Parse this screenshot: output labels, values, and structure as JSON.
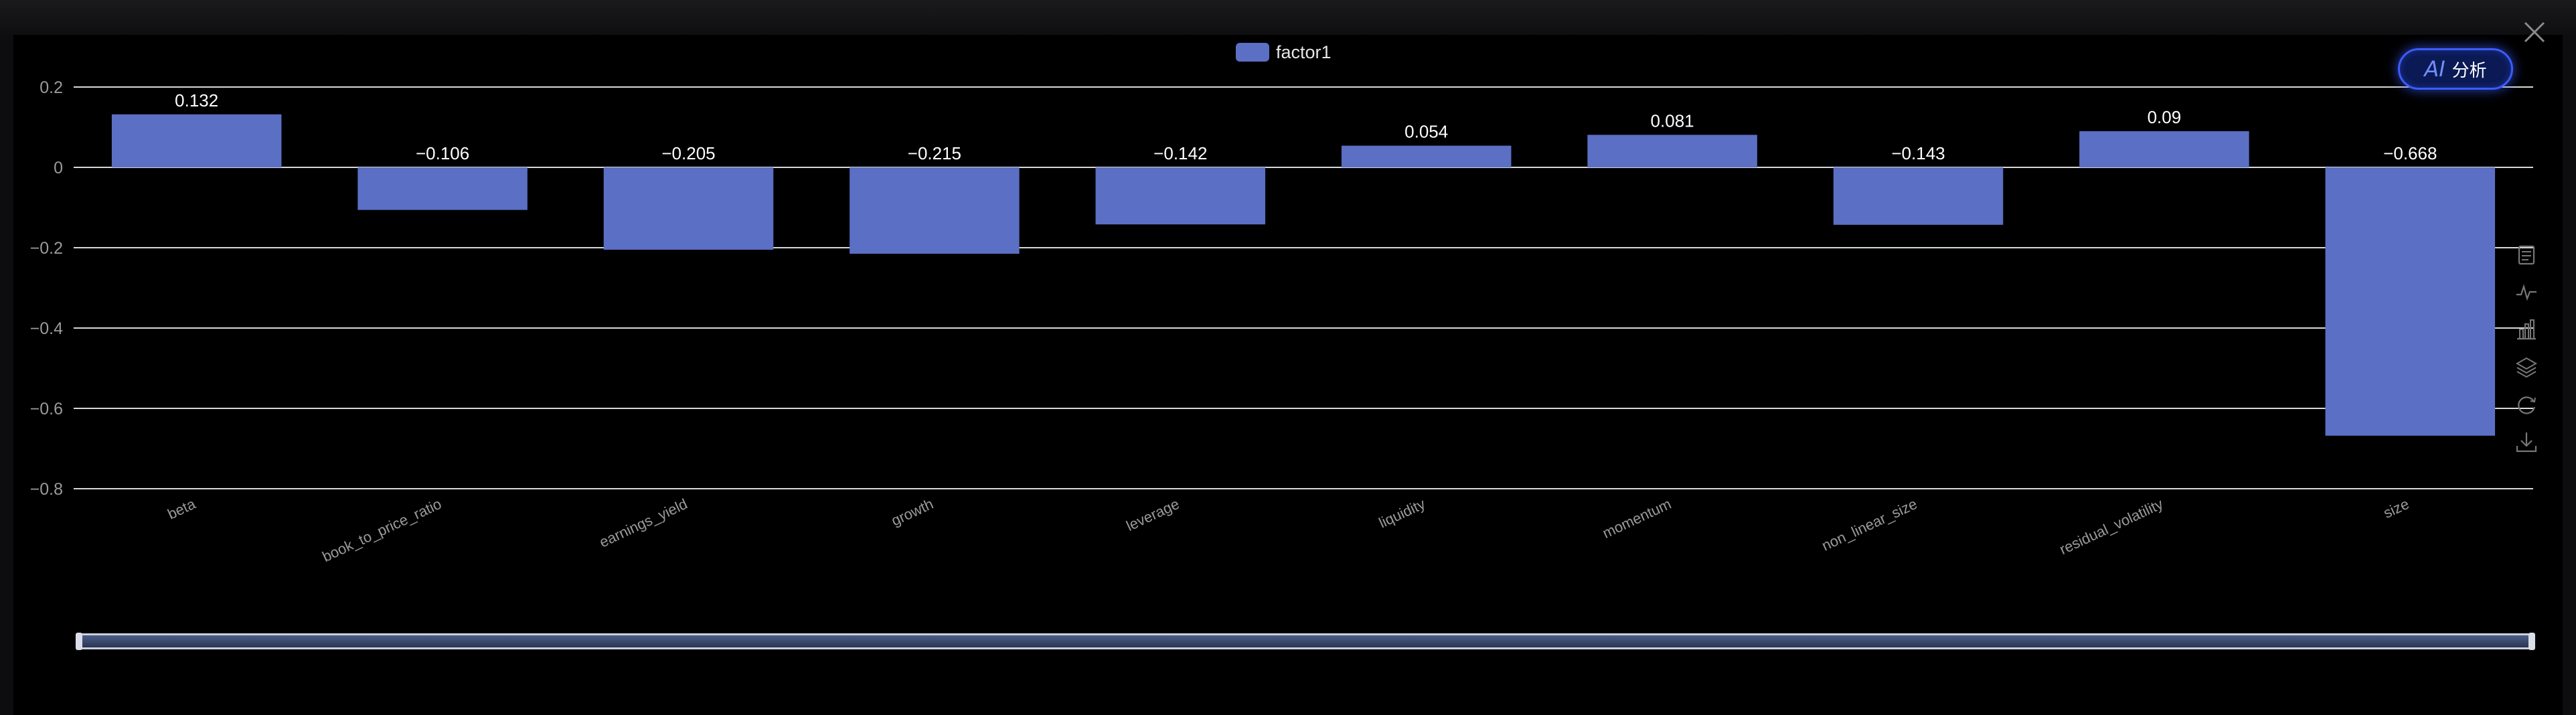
{
  "colors": {
    "bar": "#5b6fc4",
    "grid": "#d8d8d8",
    "axis_text": "#9a9a9a",
    "label_text": "#ffffff",
    "background": "#000000"
  },
  "ai_button": {
    "mark": "AI",
    "label": "分析"
  },
  "icons": {
    "close": "close-icon",
    "toolbox": [
      "data-view-icon",
      "line-chart-icon",
      "bar-chart-icon",
      "stack-icon",
      "restore-icon",
      "download-icon"
    ]
  },
  "chart_data": {
    "type": "bar",
    "categories": [
      "beta",
      "book_to_price_ratio",
      "earnings_yield",
      "growth",
      "leverage",
      "liquidity",
      "momentum",
      "non_linear_size",
      "residual_volatility",
      "size"
    ],
    "series": [
      {
        "name": "factor1",
        "values": [
          0.132,
          -0.106,
          -0.205,
          -0.215,
          -0.142,
          0.054,
          0.081,
          -0.143,
          0.09,
          -0.668
        ]
      }
    ],
    "data_labels": [
      "0.132",
      "−0.106",
      "−0.205",
      "−0.215",
      "−0.142",
      "0.054",
      "0.081",
      "−0.143",
      "0.09",
      "−0.668"
    ],
    "y_ticks": [
      "0.2",
      "0",
      "−0.2",
      "−0.4",
      "−0.6",
      "−0.8"
    ],
    "y_tick_values": [
      0.2,
      0,
      -0.2,
      -0.4,
      -0.6,
      -0.8
    ],
    "ylim": [
      -0.8,
      0.2
    ],
    "grid": true,
    "legend_position": "top-center",
    "x_label_rotation": "slanted",
    "data_zoom": {
      "start_percent": 0,
      "end_percent": 100
    }
  }
}
